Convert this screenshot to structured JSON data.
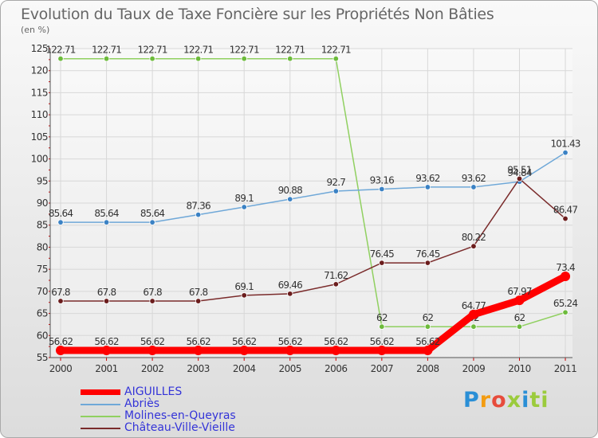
{
  "title": "Evolution du Taux de Taxe Foncière sur les Propriétés Non Bâties",
  "unit_label": "(en %)",
  "logo": {
    "letters": [
      "P",
      "r",
      "o",
      "x",
      "i",
      "ti"
    ],
    "text": "Proxiti"
  },
  "chart_data": {
    "type": "line",
    "title": "Evolution du Taux de Taxe Foncière sur les Propriétés Non Bâties",
    "ylabel": "(en %)",
    "xlabel": "",
    "ylim": [
      55,
      125
    ],
    "yticks": [
      55,
      60,
      65,
      70,
      75,
      80,
      85,
      90,
      95,
      100,
      105,
      110,
      115,
      120,
      125
    ],
    "grid": true,
    "legend_position": "bottom-left",
    "categories": [
      "2000",
      "2001",
      "2002",
      "2003",
      "2004",
      "2005",
      "2006",
      "2007",
      "2008",
      "2009",
      "2010",
      "2011"
    ],
    "series": [
      {
        "name": "Molines-en-Queyras",
        "color": "#90d060",
        "marker": "#6dbb3c",
        "values": [
          122.71,
          122.71,
          122.71,
          122.71,
          122.71,
          122.71,
          122.71,
          62,
          62,
          62,
          62,
          65.24
        ],
        "labels": [
          "122.71",
          "122.71",
          "122.71",
          "122.71",
          "122.71",
          "122.71",
          "122.71",
          "62",
          "62",
          "62",
          "62",
          "65.24"
        ]
      },
      {
        "name": "Abriès",
        "color": "#6fa8d8",
        "marker": "#3b82c4",
        "values": [
          85.64,
          85.64,
          85.64,
          87.36,
          89.1,
          90.88,
          92.7,
          93.16,
          93.62,
          93.62,
          94.84,
          101.43
        ],
        "labels": [
          "85.64",
          "85.64",
          "85.64",
          "87.36",
          "89.1",
          "90.88",
          "92.7",
          "93.16",
          "93.62",
          "93.62",
          "94.84",
          "101.43"
        ]
      },
      {
        "name": "Château-Ville-Vieille",
        "color": "#7a2b2b",
        "marker": "#6b1d1d",
        "values": [
          67.8,
          67.8,
          67.8,
          67.8,
          69.1,
          69.46,
          71.62,
          76.45,
          76.45,
          80.22,
          95.51,
          86.47
        ],
        "labels": [
          "67.8",
          "67.8",
          "67.8",
          "67.8",
          "69.1",
          "69.46",
          "71.62",
          "76.45",
          "76.45",
          "80.22",
          "95.51",
          "86.47"
        ]
      },
      {
        "name": "AIGUILLES",
        "color": "#ff0000",
        "marker": "#ff0000",
        "thick": true,
        "values": [
          56.62,
          56.62,
          56.62,
          56.62,
          56.62,
          56.62,
          56.62,
          56.62,
          56.62,
          64.77,
          67.97,
          73.4
        ],
        "labels": [
          "56.62",
          "56.62",
          "56.62",
          "56.62",
          "56.62",
          "56.62",
          "56.62",
          "56.62",
          "56.62",
          "64.77",
          "67.97",
          "73.4"
        ]
      }
    ]
  },
  "legend": [
    {
      "name": "AIGUILLES",
      "color": "#ff0000",
      "thick": true
    },
    {
      "name": "Abriès",
      "color": "#6fa8d8",
      "thick": false
    },
    {
      "name": "Molines-en-Queyras",
      "color": "#90d060",
      "thick": false
    },
    {
      "name": "Château-Ville-Vieille",
      "color": "#7a2b2b",
      "thick": false
    }
  ]
}
